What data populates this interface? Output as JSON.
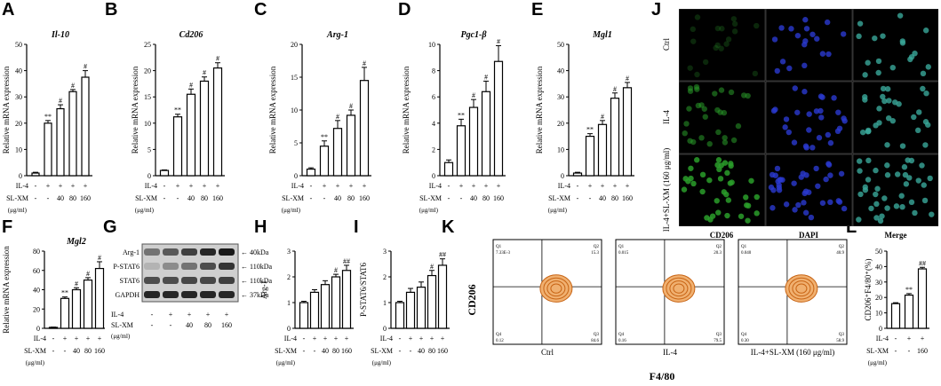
{
  "panel_letters": [
    "A",
    "B",
    "C",
    "D",
    "E",
    "F",
    "G",
    "H",
    "I",
    "J",
    "K",
    "L"
  ],
  "treatment": {
    "row1_label": "IL-4",
    "row2_label": "SL-XM",
    "unit_label": "(μg/ml)",
    "il4": [
      "-",
      "+",
      "+",
      "+",
      "+"
    ],
    "slxm": [
      "-",
      "-",
      "40",
      "80",
      "160"
    ]
  },
  "chart_data": [
    {
      "id": "A",
      "type": "bar",
      "title": "Il-10",
      "ylabel": "Relative mRNA expression",
      "ylim": [
        0,
        50
      ],
      "yticks": [
        0,
        10,
        20,
        30,
        40,
        50
      ],
      "values": [
        1,
        20,
        25.5,
        32,
        37.5
      ],
      "errors": [
        0.3,
        1,
        1.5,
        0.8,
        2.5
      ],
      "sig": [
        "",
        "**",
        "#",
        "#",
        "#"
      ]
    },
    {
      "id": "B",
      "type": "bar",
      "title": "Cd206",
      "ylabel": "Relative mRNA expression",
      "ylim": [
        0,
        25
      ],
      "yticks": [
        0,
        5,
        10,
        15,
        20,
        25
      ],
      "values": [
        1,
        11.2,
        15.5,
        18,
        20.5
      ],
      "errors": [
        0.1,
        0.5,
        1,
        0.8,
        1
      ],
      "sig": [
        "",
        "**",
        "#",
        "#",
        "#"
      ]
    },
    {
      "id": "C",
      "type": "bar",
      "title": "Arg-1",
      "ylabel": "Relative mRNA expression",
      "ylim": [
        0,
        20
      ],
      "yticks": [
        0,
        5,
        10,
        15,
        20
      ],
      "values": [
        1,
        4.5,
        7.2,
        9.2,
        14.5
      ],
      "errors": [
        0.2,
        0.8,
        1.2,
        0.8,
        2
      ],
      "sig": [
        "",
        "**",
        "#",
        "#",
        "#"
      ]
    },
    {
      "id": "D",
      "type": "bar",
      "title": "Pgc1-β",
      "ylabel": "Relative mRNA expression",
      "ylim": [
        0,
        10
      ],
      "yticks": [
        0,
        2,
        4,
        6,
        8,
        10
      ],
      "values": [
        1,
        3.8,
        5.2,
        6.4,
        8.7
      ],
      "errors": [
        0.2,
        0.5,
        0.6,
        0.8,
        1.2
      ],
      "sig": [
        "",
        "**",
        "#",
        "#",
        "#"
      ]
    },
    {
      "id": "E",
      "type": "bar",
      "title": "Mgl1",
      "ylabel": "Relative mRNA expression",
      "ylim": [
        0,
        50
      ],
      "yticks": [
        0,
        10,
        20,
        30,
        40,
        50
      ],
      "values": [
        1,
        15,
        19.5,
        29.5,
        33.5
      ],
      "errors": [
        0.3,
        1,
        1.5,
        2,
        2
      ],
      "sig": [
        "",
        "**",
        "#",
        "#",
        "#"
      ]
    },
    {
      "id": "F",
      "type": "bar",
      "title": "Mgl2",
      "ylabel": "Relative mRNA expression",
      "ylim": [
        0,
        80
      ],
      "yticks": [
        0,
        20,
        40,
        60,
        80
      ],
      "values": [
        1,
        31,
        40,
        50,
        62
      ],
      "errors": [
        0.3,
        1.5,
        2,
        2.5,
        7
      ],
      "sig": [
        "",
        "**",
        "#",
        "#",
        "#"
      ]
    },
    {
      "id": "H",
      "type": "bar",
      "title": "",
      "ylabel": "Arg-1",
      "ylim": [
        0,
        3
      ],
      "yticks": [
        0,
        1,
        2,
        3
      ],
      "values": [
        1,
        1.4,
        1.7,
        2.0,
        2.25
      ],
      "errors": [
        0.05,
        0.1,
        0.15,
        0.1,
        0.2
      ],
      "sig": [
        "",
        "",
        "",
        "#",
        "##"
      ]
    },
    {
      "id": "I",
      "type": "bar",
      "title": "",
      "ylabel": "P-STAT6/STAT6",
      "ylim": [
        0,
        3
      ],
      "yticks": [
        0,
        1,
        2,
        3
      ],
      "values": [
        1,
        1.4,
        1.6,
        2.05,
        2.45
      ],
      "errors": [
        0.05,
        0.15,
        0.2,
        0.2,
        0.25
      ],
      "sig": [
        "",
        "",
        "",
        "#",
        "##"
      ]
    },
    {
      "id": "L",
      "type": "bar",
      "title": "",
      "ylabel": "CD206⁺F4/80⁺(%)",
      "ylim": [
        0,
        50
      ],
      "yticks": [
        0,
        10,
        20,
        30,
        40,
        50
      ],
      "values": [
        16,
        21.5,
        38.5
      ],
      "errors": [
        0.6,
        1,
        1
      ],
      "sig": [
        "",
        "**",
        "##"
      ],
      "il4": [
        "-",
        "+",
        "+"
      ],
      "slxm": [
        "-",
        "-",
        "160"
      ]
    }
  ],
  "blot": {
    "proteins": [
      "Arg-1",
      "P-STAT6",
      "STAT6",
      "GAPDH"
    ],
    "sizes": [
      "40kDa",
      "110kDa",
      "110kDa",
      "37kDa"
    ]
  },
  "micro": {
    "rows": [
      "Ctrl",
      "IL-4",
      "IL-4+SL-XM (160 μg/ml)"
    ],
    "cols": [
      "CD206",
      "DAPI",
      "Merge"
    ]
  },
  "flow": {
    "ylabel": "CD206",
    "xlabel": "F4/80",
    "plots": [
      {
        "label": "Ctrl",
        "q1": "7.33E-3",
        "q2": "15.3",
        "q3": "84.6",
        "q4": "0.12"
      },
      {
        "label": "IL-4",
        "q1": "0.015",
        "q2": "20.3",
        "q3": "79.5",
        "q4": "0.16"
      },
      {
        "label": "IL-4+SL-XM (160 μg/ml)",
        "q1": "0.040",
        "q2": "40.9",
        "q3": "58.9",
        "q4": "0.30"
      }
    ]
  }
}
